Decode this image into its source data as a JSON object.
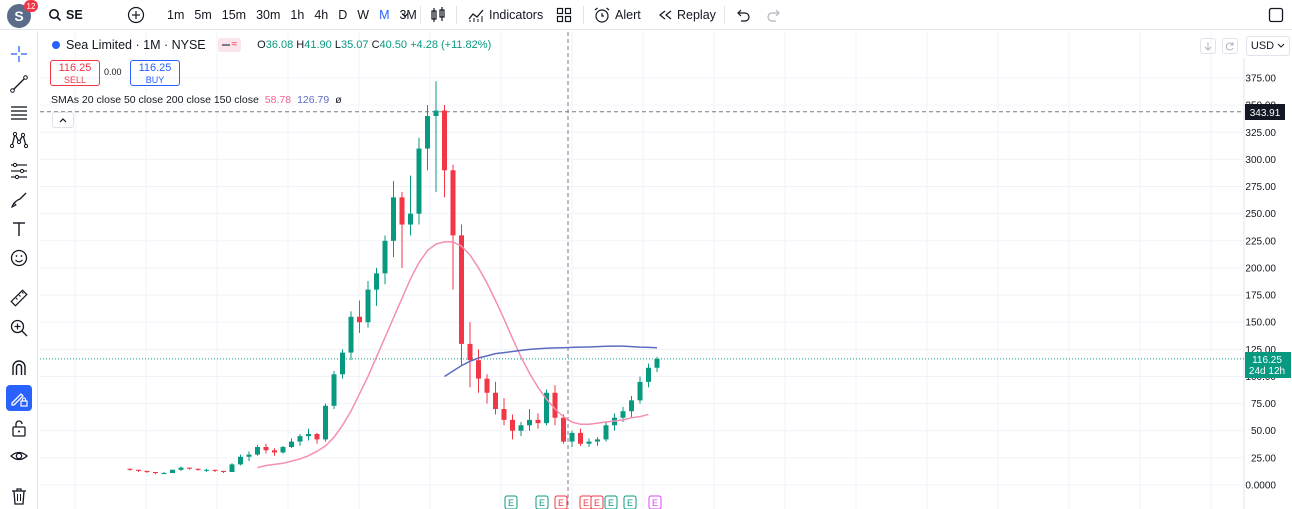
{
  "app": {
    "notifications": "12",
    "avatar_letter": "S"
  },
  "toolbar": {
    "symbol": "SE",
    "intervals": [
      "1m",
      "5m",
      "15m",
      "30m",
      "1h",
      "4h",
      "D",
      "W",
      "M",
      "3M"
    ],
    "active_interval": "M",
    "indicators_label": "Indicators",
    "alert_label": "Alert",
    "replay_label": "Replay"
  },
  "legend": {
    "title": "Sea Limited · 1M · NYSE",
    "o_label": "O",
    "o_value": "36.08",
    "h_label": "H",
    "h_value": "41.90",
    "l_label": "L",
    "l_value": "35.07",
    "c_label": "C",
    "c_value": "40.50",
    "change": "+4.28 (+11.82%)",
    "sell_price": "116.25",
    "sell_label": "SELL",
    "spread": "0.00",
    "buy_price": "116.25",
    "buy_label": "BUY",
    "smas_text": "SMAs 20 close 50 close 200 close 150 close",
    "sma_val1": "58.78",
    "sma_val2": "126.79",
    "sma_val3": "ø"
  },
  "currency": "USD",
  "price_axis": {
    "ticks": [
      "375.00",
      "350.00",
      "325.00",
      "300.00",
      "275.00",
      "250.00",
      "225.00",
      "200.00",
      "175.00",
      "150.00",
      "125.00",
      "100.00",
      "75.00",
      "50.00",
      "25.00",
      "0.0000"
    ],
    "crosshair_label": "343.91",
    "last_price_label": "116.25",
    "countdown_label": "24d 12h"
  },
  "earnings_markers": [
    "E",
    "E",
    "E",
    "E",
    "E",
    "E",
    "E",
    "E"
  ],
  "colors": {
    "up": "#089981",
    "down": "#f23645",
    "sma_pink": "#f48fb1",
    "sma_blue": "#5c6bc0",
    "accent": "#2962ff"
  },
  "chart_data": {
    "type": "candlestick",
    "ylim": [
      0,
      390
    ],
    "crosshair_price": 343.91,
    "last_price": 116.25,
    "candles": [
      [
        15,
        15,
        13,
        14
      ],
      [
        14,
        14,
        12,
        13
      ],
      [
        13,
        13,
        11,
        12
      ],
      [
        12,
        12,
        10,
        11
      ],
      [
        11,
        12,
        10,
        11
      ],
      [
        11,
        14,
        11,
        14
      ],
      [
        14,
        17,
        13,
        16
      ],
      [
        16,
        16,
        14,
        15
      ],
      [
        15,
        15,
        13,
        14
      ],
      [
        14,
        15,
        12,
        14
      ],
      [
        14,
        14,
        12,
        13
      ],
      [
        13,
        13,
        11,
        12
      ],
      [
        12,
        20,
        12,
        19
      ],
      [
        19,
        28,
        18,
        26
      ],
      [
        26,
        31,
        22,
        28
      ],
      [
        28,
        37,
        27,
        35
      ],
      [
        35,
        38,
        29,
        32
      ],
      [
        32,
        34,
        27,
        30
      ],
      [
        30,
        36,
        29,
        35
      ],
      [
        35,
        43,
        34,
        40
      ],
      [
        40,
        47,
        36,
        45
      ],
      [
        45,
        52,
        41,
        47
      ],
      [
        47,
        48,
        38,
        42
      ],
      [
        42,
        75,
        40,
        73
      ],
      [
        73,
        105,
        70,
        102
      ],
      [
        102,
        125,
        98,
        122
      ],
      [
        122,
        160,
        115,
        155
      ],
      [
        155,
        170,
        140,
        150
      ],
      [
        150,
        188,
        145,
        180
      ],
      [
        180,
        200,
        165,
        195
      ],
      [
        195,
        230,
        185,
        225
      ],
      [
        225,
        280,
        210,
        265
      ],
      [
        265,
        270,
        200,
        240
      ],
      [
        240,
        285,
        230,
        250
      ],
      [
        250,
        320,
        240,
        310
      ],
      [
        310,
        350,
        290,
        340
      ],
      [
        340,
        372,
        270,
        345
      ],
      [
        345,
        350,
        265,
        290
      ],
      [
        290,
        295,
        180,
        230
      ],
      [
        230,
        240,
        110,
        130
      ],
      [
        130,
        150,
        90,
        115
      ],
      [
        115,
        125,
        85,
        98
      ],
      [
        98,
        102,
        75,
        85
      ],
      [
        85,
        95,
        65,
        70
      ],
      [
        70,
        80,
        55,
        60
      ],
      [
        60,
        65,
        42,
        50
      ],
      [
        50,
        58,
        45,
        55
      ],
      [
        55,
        70,
        50,
        60
      ],
      [
        60,
        66,
        52,
        57
      ],
      [
        57,
        88,
        55,
        85
      ],
      [
        85,
        92,
        55,
        62
      ],
      [
        62,
        65,
        38,
        40
      ],
      [
        40,
        50,
        35,
        48
      ],
      [
        48,
        52,
        36,
        38
      ],
      [
        38,
        43,
        35,
        40
      ],
      [
        40,
        44,
        36,
        42
      ],
      [
        42,
        58,
        40,
        55
      ],
      [
        55,
        66,
        50,
        62
      ],
      [
        62,
        72,
        58,
        68
      ],
      [
        68,
        82,
        62,
        78
      ],
      [
        78,
        100,
        75,
        95
      ],
      [
        95,
        112,
        90,
        108
      ],
      [
        108,
        118,
        104,
        116.25
      ]
    ],
    "sma_pink": [
      [
        15,
        16
      ],
      [
        16,
        18
      ],
      [
        17,
        19
      ],
      [
        18,
        20
      ],
      [
        19,
        22
      ],
      [
        20,
        24
      ],
      [
        21,
        27
      ],
      [
        22,
        31
      ],
      [
        23,
        36
      ],
      [
        24,
        44
      ],
      [
        25,
        55
      ],
      [
        26,
        68
      ],
      [
        27,
        84
      ],
      [
        28,
        100
      ],
      [
        29,
        118
      ],
      [
        30,
        136
      ],
      [
        31,
        154
      ],
      [
        32,
        172
      ],
      [
        33,
        190
      ],
      [
        34,
        205
      ],
      [
        35,
        216
      ],
      [
        36,
        222
      ],
      [
        37,
        224
      ],
      [
        38,
        224
      ],
      [
        39,
        220
      ],
      [
        40,
        212
      ],
      [
        41,
        200
      ],
      [
        42,
        186
      ],
      [
        43,
        170
      ],
      [
        44,
        153
      ],
      [
        45,
        135
      ],
      [
        46,
        118
      ],
      [
        47,
        103
      ],
      [
        48,
        90
      ],
      [
        49,
        79
      ],
      [
        50,
        70
      ],
      [
        51,
        63
      ],
      [
        52,
        58
      ],
      [
        53,
        56
      ],
      [
        54,
        56
      ],
      [
        55,
        57
      ],
      [
        56,
        58
      ],
      [
        57,
        59
      ],
      [
        58,
        60
      ],
      [
        59,
        62
      ],
      [
        60,
        63
      ],
      [
        61,
        65
      ]
    ],
    "sma_blue": [
      [
        37,
        100
      ],
      [
        38,
        105
      ],
      [
        39,
        110
      ],
      [
        40,
        114
      ],
      [
        41,
        117
      ],
      [
        42,
        119
      ],
      [
        43,
        121
      ],
      [
        44,
        122
      ],
      [
        45,
        123
      ],
      [
        46,
        124
      ],
      [
        47,
        125
      ],
      [
        48,
        125.5
      ],
      [
        49,
        126
      ],
      [
        50,
        126.3
      ],
      [
        51,
        126.5
      ],
      [
        52,
        126.8
      ],
      [
        53,
        127
      ],
      [
        54,
        127.2
      ],
      [
        55,
        127.5
      ],
      [
        56,
        127.8
      ],
      [
        57,
        128
      ],
      [
        58,
        128
      ],
      [
        59,
        127.5
      ],
      [
        60,
        127
      ],
      [
        61,
        126.8
      ],
      [
        62,
        126.5
      ]
    ]
  }
}
